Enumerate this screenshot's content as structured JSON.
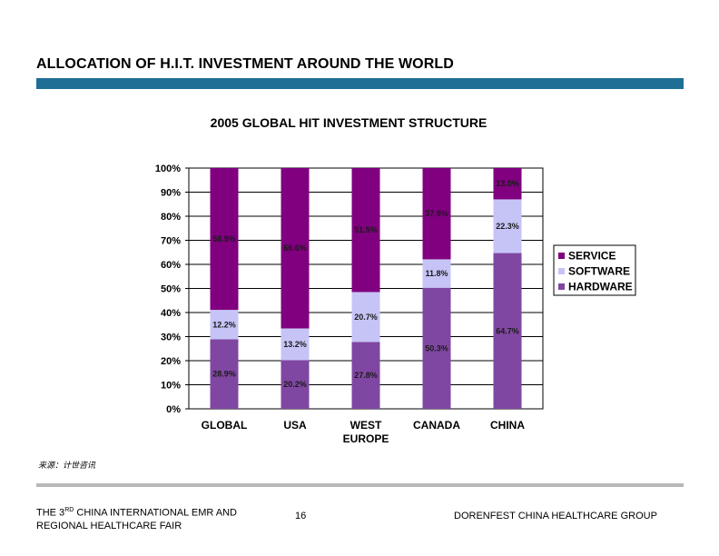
{
  "slide": {
    "title": "ALLOCATION OF H.I.T. INVESTMENT AROUND THE WORLD",
    "source": "来源：计世咨讯",
    "footer_left_pre": "THE 3",
    "footer_left_sup": "RD",
    "footer_left_post": " CHINA INTERNATIONAL EMR AND",
    "footer_left_line2": "REGIONAL HEALTHCARE FAIR",
    "page_number": "16",
    "footer_right": "DORENFEST CHINA HEALTHCARE GROUP",
    "accent_color": "#1f6e96"
  },
  "chart_data": {
    "type": "bar",
    "stacked": true,
    "title": "2005 GLOBAL HIT INVESTMENT STRUCTURE",
    "categories": [
      [
        "GLOBAL"
      ],
      [
        "USA"
      ],
      [
        "WEST",
        "EUROPE"
      ],
      [
        "CANADA"
      ],
      [
        "CHINA"
      ]
    ],
    "series": [
      {
        "name": "HARDWARE",
        "color": "#8047a2",
        "values": [
          28.9,
          20.2,
          27.8,
          50.3,
          64.7
        ],
        "labels": [
          "28.9%",
          "20.2%",
          "27.8%",
          "50.3%",
          "64.7%"
        ]
      },
      {
        "name": "SOFTWARE",
        "color": "#c6c4f6",
        "values": [
          12.2,
          13.2,
          20.7,
          11.8,
          22.3
        ],
        "labels": [
          "12.2%",
          "13.2%",
          "20.7%",
          "11.8%",
          "22.3%"
        ]
      },
      {
        "name": "SERVICE",
        "color": "#80007f",
        "values": [
          58.9,
          66.6,
          51.5,
          37.9,
          13.0
        ],
        "labels": [
          "58.9%",
          "66.6%",
          "51.5%",
          "37.9%",
          "13.0%"
        ]
      }
    ],
    "yticks": [
      "0%",
      "10%",
      "20%",
      "30%",
      "40%",
      "50%",
      "60%",
      "70%",
      "80%",
      "90%",
      "100%"
    ],
    "ylim": [
      0,
      100
    ],
    "grid": true,
    "legend": {
      "position": "right",
      "order": [
        "SERVICE",
        "SOFTWARE",
        "HARDWARE"
      ]
    }
  }
}
